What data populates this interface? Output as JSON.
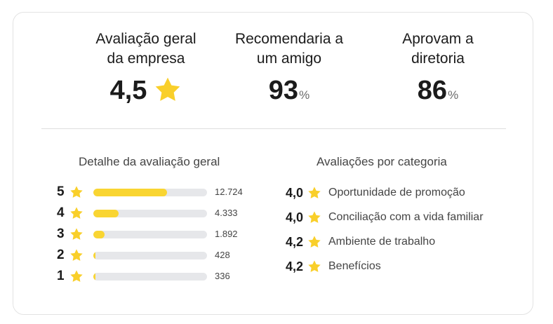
{
  "colors": {
    "accent_star": "#F9CF2A",
    "bar_fill": "#F9D532",
    "bar_track": "#E6E7EA"
  },
  "summary": {
    "overall": {
      "label": "Avaliação geral\nda empresa",
      "value": "4,5",
      "icon": "star-icon"
    },
    "recommend": {
      "label": "Recomendaria a\num amigo",
      "value": "93",
      "unit": "%"
    },
    "approve": {
      "label": "Aprovam a\ndiretoria",
      "value": "86",
      "unit": "%"
    }
  },
  "breakdown": {
    "title": "Detalhe da avaliação geral",
    "rows": [
      {
        "stars": "5",
        "count": "12.724",
        "fill_fraction": 0.65
      },
      {
        "stars": "4",
        "count": "4.333",
        "fill_fraction": 0.22
      },
      {
        "stars": "3",
        "count": "1.892",
        "fill_fraction": 0.1
      },
      {
        "stars": "2",
        "count": "428",
        "fill_fraction": 0.02
      },
      {
        "stars": "1",
        "count": "336",
        "fill_fraction": 0.017
      }
    ]
  },
  "categories": {
    "title": "Avaliações por categoria",
    "items": [
      {
        "score": "4,0",
        "name": "Oportunidade de promoção"
      },
      {
        "score": "4,0",
        "name": "Conciliação com a vida familiar"
      },
      {
        "score": "4,2",
        "name": "Ambiente de trabalho"
      },
      {
        "score": "4,2",
        "name": "Benefícios"
      }
    ]
  }
}
